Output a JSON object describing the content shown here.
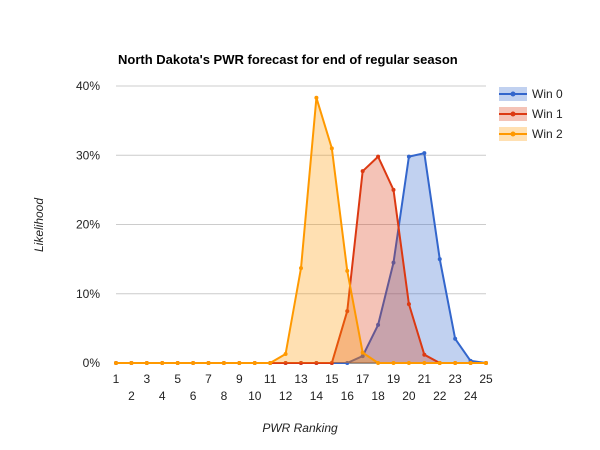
{
  "chart_data": {
    "type": "area",
    "title": "North Dakota's PWR forecast for end of regular season",
    "xlabel": "PWR Ranking",
    "ylabel": "Likelihood",
    "x": [
      1,
      2,
      3,
      4,
      5,
      6,
      7,
      8,
      9,
      10,
      11,
      12,
      13,
      14,
      15,
      16,
      17,
      18,
      19,
      20,
      21,
      22,
      23,
      24,
      25
    ],
    "x_ticks": [
      "1",
      "2",
      "3",
      "4",
      "5",
      "6",
      "7",
      "8",
      "9",
      "10",
      "11",
      "12",
      "13",
      "14",
      "15",
      "16",
      "17",
      "18",
      "19",
      "20",
      "21",
      "22",
      "23",
      "24",
      "25"
    ],
    "y_ticks": [
      "0%",
      "10%",
      "20%",
      "30%",
      "40%"
    ],
    "ylim": [
      0,
      40
    ],
    "grid": true,
    "legend_position": "right",
    "series": [
      {
        "name": "Win 0",
        "color": "#3366cc",
        "values": [
          0,
          0,
          0,
          0,
          0,
          0,
          0,
          0,
          0,
          0,
          0,
          0,
          0,
          0,
          0,
          0,
          1,
          5.5,
          14.5,
          29.8,
          30.3,
          15,
          3.5,
          0.3,
          0
        ]
      },
      {
        "name": "Win 1",
        "color": "#dc3912",
        "values": [
          0,
          0,
          0,
          0,
          0,
          0,
          0,
          0,
          0,
          0,
          0,
          0,
          0,
          0,
          0,
          7.5,
          27.7,
          29.8,
          25,
          8.5,
          1.2,
          0,
          0,
          0,
          0
        ]
      },
      {
        "name": "Win 2",
        "color": "#ff9900",
        "values": [
          0,
          0,
          0,
          0,
          0,
          0,
          0,
          0,
          0,
          0,
          0,
          1.3,
          13.7,
          38.3,
          31,
          13.3,
          1.5,
          0,
          0,
          0,
          0,
          0,
          0,
          0,
          0
        ]
      }
    ]
  }
}
